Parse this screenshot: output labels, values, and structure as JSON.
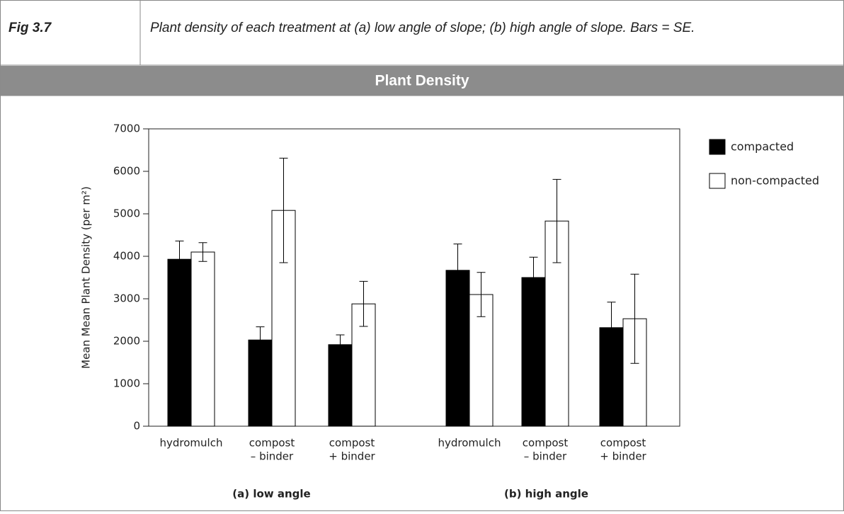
{
  "figure_label": "Fig 3.7",
  "caption": "Plant density of each treatment at (a) low angle of slope; (b) high angle of slope.  Bars = SE.",
  "chart_data": {
    "type": "bar",
    "title": "Plant Density",
    "ylabel": "Mean Mean Plant Density (per m²)",
    "ylim": [
      0,
      7000
    ],
    "yticks": [
      0,
      1000,
      2000,
      3000,
      4000,
      5000,
      6000,
      7000
    ],
    "series": [
      {
        "name": "compacted",
        "color": "#000000"
      },
      {
        "name": "non-compacted",
        "color": "#ffffff"
      }
    ],
    "groups": [
      {
        "label": "(a) low angle",
        "categories": [
          [
            "hydromulch"
          ],
          [
            "compost",
            "– binder"
          ],
          [
            "compost",
            "+ binder"
          ]
        ],
        "values": [
          [
            3930,
            2030,
            1920
          ],
          [
            4100,
            5080,
            2880
          ]
        ],
        "errors": [
          [
            430,
            310,
            230
          ],
          [
            220,
            1230,
            530
          ]
        ]
      },
      {
        "label": "(b) high angle",
        "categories": [
          [
            "hydromulch"
          ],
          [
            "compost",
            "– binder"
          ],
          [
            "compost",
            "+ binder"
          ]
        ],
        "values": [
          [
            3670,
            3500,
            2320
          ],
          [
            3100,
            4830,
            2530
          ]
        ],
        "errors": [
          [
            620,
            480,
            600
          ],
          [
            520,
            980,
            1050
          ]
        ]
      }
    ]
  }
}
